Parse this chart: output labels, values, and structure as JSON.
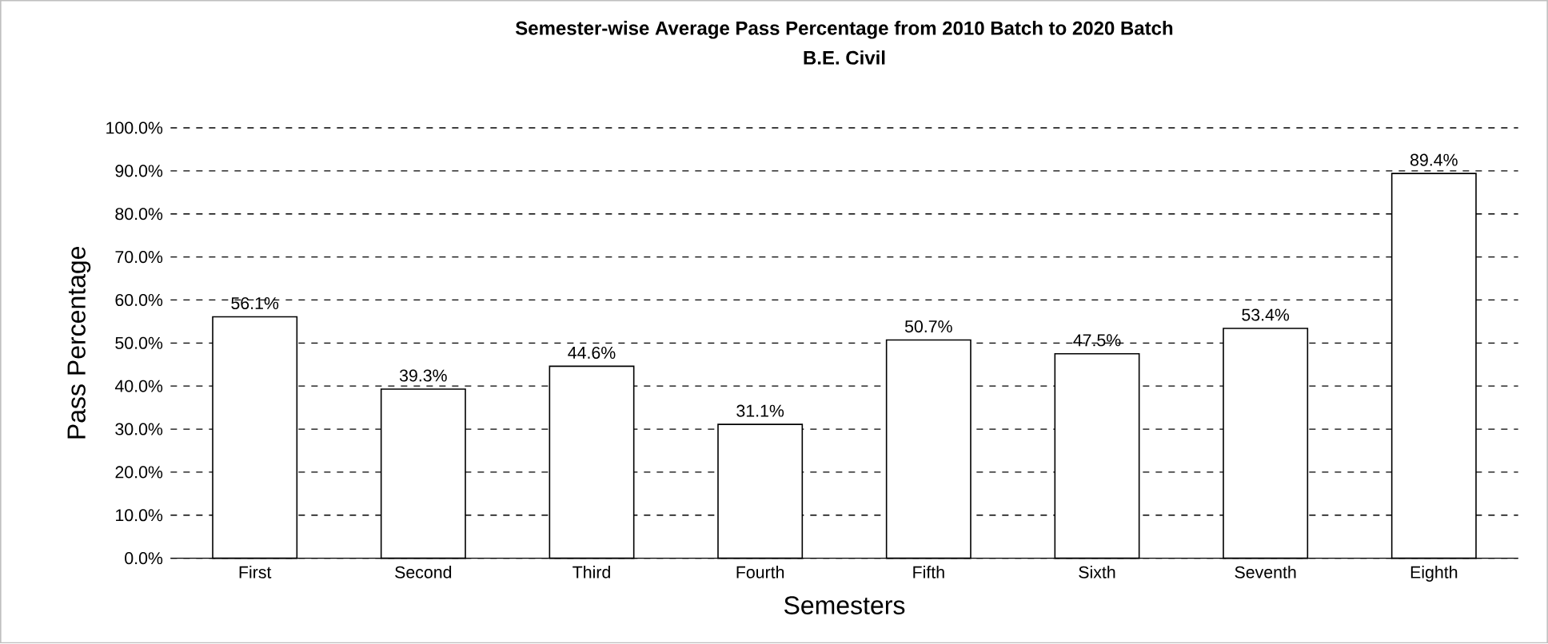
{
  "chart_data": {
    "type": "bar",
    "title": "Semester-wise Average Pass Percentage from 2010 Batch to 2020 Batch",
    "subtitle": "B.E. Civil",
    "xlabel": "Semesters",
    "ylabel": "Pass Percentage",
    "categories": [
      "First",
      "Second",
      "Third",
      "Fourth",
      "Fifth",
      "Sixth",
      "Seventh",
      "Eighth"
    ],
    "values": [
      56.1,
      39.3,
      44.6,
      31.1,
      50.7,
      47.5,
      53.4,
      89.4
    ],
    "value_labels": [
      "56.1%",
      "39.3%",
      "44.6%",
      "31.1%",
      "50.7%",
      "47.5%",
      "53.4%",
      "89.4%"
    ],
    "color": "#ffffff",
    "ylim": [
      0,
      100
    ],
    "yticks": [
      {
        "value": 0,
        "label": "0.0%"
      },
      {
        "value": 10,
        "label": "10.0%"
      },
      {
        "value": 20,
        "label": "20.0%"
      },
      {
        "value": 30,
        "label": "30.0%"
      },
      {
        "value": 40,
        "label": "40.0%"
      },
      {
        "value": 50,
        "label": "50.0%"
      },
      {
        "value": 60,
        "label": "60.0%"
      },
      {
        "value": 70,
        "label": "70.0%"
      },
      {
        "value": 80,
        "label": "80.0%"
      },
      {
        "value": 90,
        "label": "90.0%"
      },
      {
        "value": 100,
        "label": "100.0%"
      }
    ],
    "grid": "y"
  }
}
